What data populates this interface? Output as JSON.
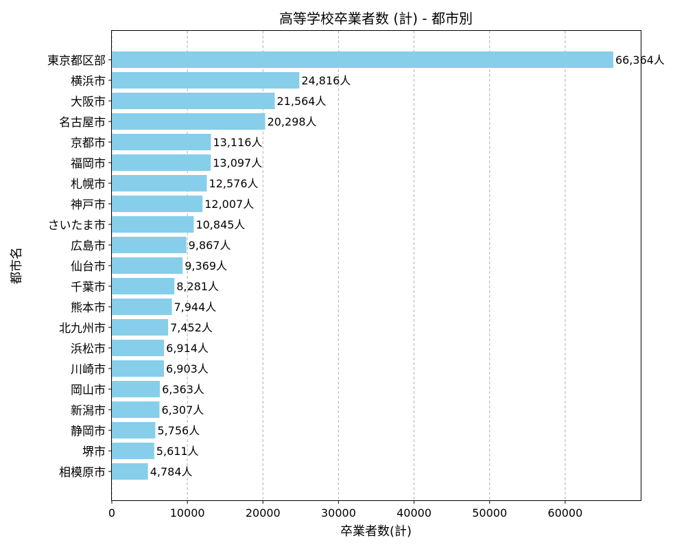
{
  "chart_data": {
    "type": "bar",
    "orientation": "horizontal",
    "title": "高等学校卒業者数 (計) - 都市別",
    "xlabel": "卒業者数(計)",
    "ylabel": "都市名",
    "xlim": [
      0,
      70000
    ],
    "xticks": [
      0,
      10000,
      20000,
      30000,
      40000,
      50000,
      60000
    ],
    "xtick_labels": [
      "0",
      "10000",
      "20000",
      "30000",
      "40000",
      "50000",
      "60000"
    ],
    "grid": "vertical-dashed",
    "bar_color": "#87ceeb",
    "categories": [
      "東京都区部",
      "横浜市",
      "大阪市",
      "名古屋市",
      "京都市",
      "福岡市",
      "札幌市",
      "神戸市",
      "さいたま市",
      "広島市",
      "仙台市",
      "千葉市",
      "熊本市",
      "北九州市",
      "浜松市",
      "川崎市",
      "岡山市",
      "新潟市",
      "静岡市",
      "堺市",
      "相模原市"
    ],
    "values": [
      66364,
      24816,
      21564,
      20298,
      13116,
      13097,
      12576,
      12007,
      10845,
      9867,
      9369,
      8281,
      7944,
      7452,
      6914,
      6903,
      6363,
      6307,
      5756,
      5611,
      4784
    ],
    "data_labels": [
      "66,364人",
      "24,816人",
      "21,564人",
      "20,298人",
      "13,116人",
      "13,097人",
      "12,576人",
      "12,007人",
      "10,845人",
      "9,867人",
      "9,369人",
      "8,281人",
      "7,944人",
      "7,452人",
      "6,914人",
      "6,903人",
      "6,363人",
      "6,307人",
      "5,756人",
      "5,611人",
      "4,784人"
    ]
  }
}
